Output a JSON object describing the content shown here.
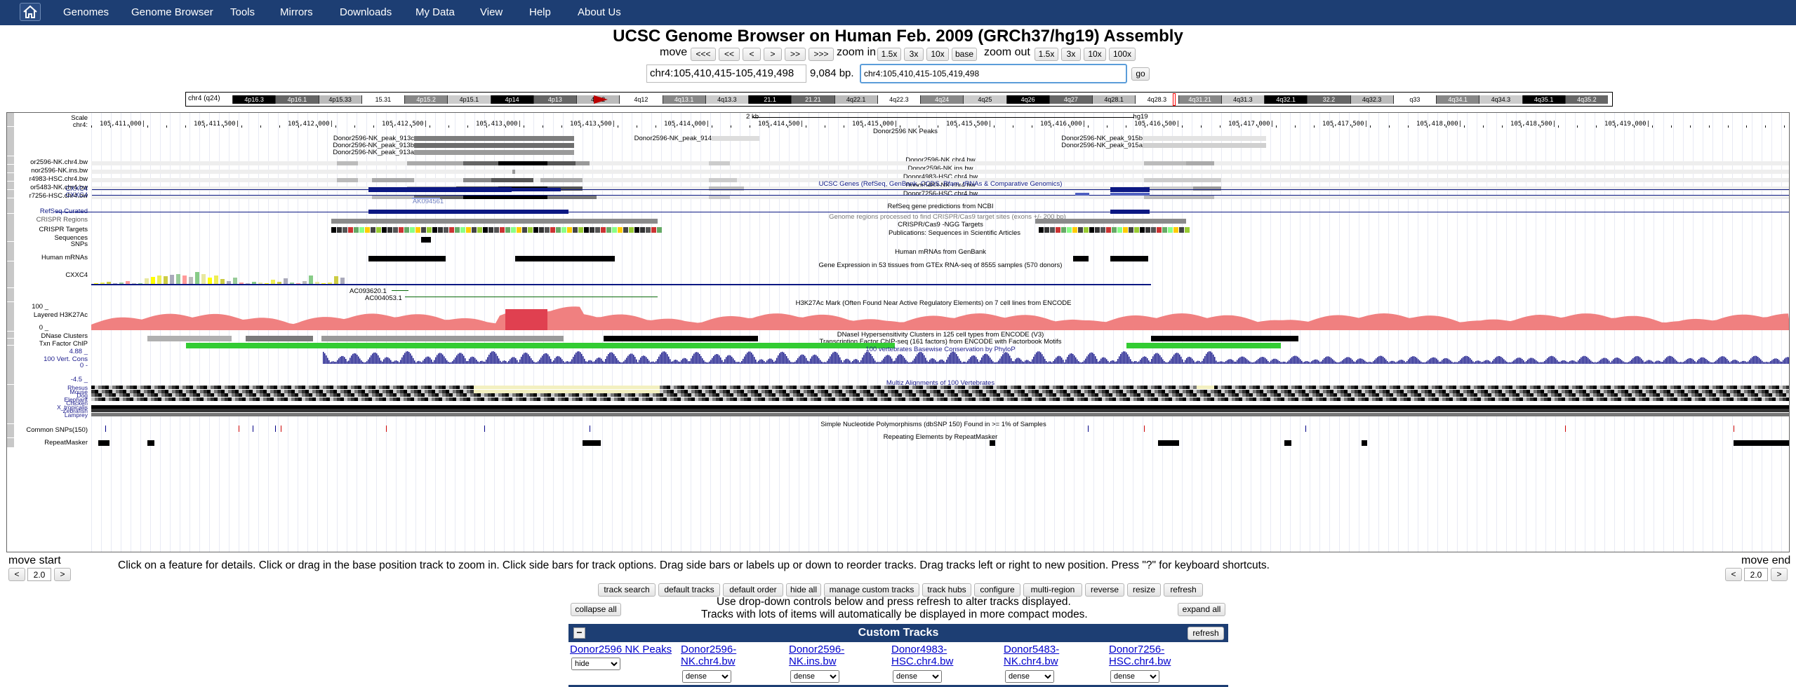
{
  "nav": {
    "items": [
      "Genomes",
      "Genome Browser",
      "Tools",
      "Mirrors",
      "Downloads",
      "My Data",
      "View",
      "Help",
      "About Us"
    ]
  },
  "title": "UCSC Genome Browser on Human Feb. 2009 (GRCh37/hg19) Assembly",
  "controls": {
    "move_label": "move",
    "move_buttons": [
      "<<<",
      "<<",
      "<",
      ">",
      ">>",
      ">>>"
    ],
    "zoom_in_label": "zoom in",
    "zoom_in_buttons": [
      "1.5x",
      "3x",
      "10x",
      "base"
    ],
    "zoom_out_label": "zoom out",
    "zoom_out_buttons": [
      "1.5x",
      "3x",
      "10x",
      "100x"
    ],
    "position": "chr4:105,410,415-105,419,498",
    "size": "9,084 bp.",
    "search_value": "chr4:105,410,415-105,419,498",
    "go": "go"
  },
  "ideogram": {
    "chrom": "chr4 (q24)",
    "bands": [
      "4p16.3",
      "4p16.1",
      "4p15.33",
      "15.31",
      "4p15.2",
      "4p15.1",
      "4p14",
      "4p13",
      "4p12",
      "4q12",
      "4q13.1",
      "4q13.3",
      "21.1",
      "21.21",
      "4q22.1",
      "4q22.3",
      "4q24",
      "4q25",
      "4q26",
      "4q27",
      "4q28.1",
      "4q28.3",
      "4q31.21",
      "4q31.3",
      "4q32.1",
      "32.2",
      "4q32.3",
      "q33",
      "4q34.1",
      "4q34.3",
      "4q35.1",
      "4q35.2"
    ]
  },
  "ruler": {
    "scale_label": "Scale",
    "chrom_label": "chr4:",
    "scale_text": "2 kb",
    "assembly": "hg19",
    "ticks": [
      "105,411,000|",
      "105,411,500|",
      "105,412,000|",
      "105,412,500|",
      "105,413,000|",
      "105,413,500|",
      "105,414,000|",
      "105,414,500|",
      "105,415,000|",
      "105,415,500|",
      "105,416,000|",
      "105,416,500|",
      "105,417,000|",
      "105,417,500|",
      "105,418,000|",
      "105,418,500|",
      "105,419,000|"
    ]
  },
  "peaks": {
    "title": "Donor2596 NK Peaks",
    "items": [
      "Donor2596-NK_peak_913c",
      "Donor2596-NK_peak_913b",
      "Donor2596-NK_peak_913a",
      "Donor2596-NK_peak_914",
      "Donor2596-NK_peak_915b",
      "Donor2596-NK_peak_915a"
    ]
  },
  "bw_tracks": [
    {
      "label": "or2596-NK.chr4.bw",
      "title": "Donor2596-NK.chr4.bw"
    },
    {
      "label": "nor2596-NK.ins.bw",
      "title": "Donor2596-NK.ins.bw"
    },
    {
      "label": "r4983-HSC.chr4.bw",
      "title": "Donor4983-HSC.chr4.bw"
    },
    {
      "label": "or5483-NK.chr4.bw",
      "title": "Donor5483-NK.chr4.bw"
    },
    {
      "label": "r7256-HSC.chr4.bw",
      "title": "Donor7256-HSC.chr4.bw"
    }
  ],
  "genes": {
    "title": "UCSC Genes (RefSeq, GenBank, CCDS, Rfam, tRNAs & Comparative Genomics)",
    "labels": [
      "CXXC4",
      "CXXC4",
      "AK094561"
    ],
    "refseq_title": "RefSeq gene predictions from NCBI",
    "refseq_label": "RefSeq Curated"
  },
  "crispr": {
    "regions_label": "CRISPR Regions",
    "targets_label": "CRISPR Targets",
    "regions_title": "Genome regions processed to find CRISPR/Cas9 target sites (exons +/- 200 bp)",
    "targets_title": "CRISPR/Cas9 -NGG Targets"
  },
  "publications": {
    "label1": "Sequences",
    "label2": "SNPs",
    "title": "Publications: Sequences in Scientific Articles"
  },
  "mrna": {
    "label": "Human mRNAs",
    "title": "Human mRNAs from GenBank"
  },
  "gtex": {
    "label": "CXXC4",
    "title": "Gene Expression in 53 tissues from GTEx RNA-seq of 8555 samples (570 donors)"
  },
  "clones": [
    "AC093620.1",
    "AC004053.1"
  ],
  "h3k27ac": {
    "label": "Layered H3K27Ac",
    "ymax": "100 _",
    "ymin": "0 _",
    "title": "H3K27Ac Mark (Often Found Near Active Regulatory Elements) on 7 cell lines from ENCODE"
  },
  "dnase": {
    "label": "DNase Clusters",
    "title": "DNaseI Hypersensitivity Clusters in 125 cell types from ENCODE (V3)"
  },
  "tfbs": {
    "label": "Txn Factor ChIP",
    "title": "Transcription Factor ChIP-seq (161 factors) from ENCODE with Factorbook Motifs"
  },
  "cons": {
    "label": "100 Vert. Cons",
    "ymax": "4.88 _",
    "zero": "0 -",
    "ymin": "-4.5 _",
    "title": "100 vertebrates Basewise Conservation by PhyloP"
  },
  "multiz": {
    "title": "Multiz Alignments of 100 Vertebrates",
    "species": [
      "Rhesus",
      "Mouse",
      "Dog",
      "Elephant",
      "Chicken",
      "X_tropicalis",
      "Zebrafish",
      "Lamprey"
    ]
  },
  "snps": {
    "label": "Common SNPs(150)",
    "title": "Simple Nucleotide Polymorphisms (dbSNP 150) Found in >= 1% of Samples"
  },
  "rmsk": {
    "label": "RepeatMasker",
    "title": "Repeating Elements by RepeatMasker"
  },
  "below": {
    "move_start": "move start",
    "move_end": "move end",
    "left_val": "2.0",
    "right_val": "2.0",
    "help_text": "Click on a feature for details. Click or drag in the base position track to zoom in. Click side bars for track options. Drag side bars or labels up or down to reorder tracks. Drag tracks left or right to new position. Press \"?\" for keyboard shortcuts.",
    "buttons": [
      "track search",
      "default tracks",
      "default order",
      "hide all",
      "manage custom tracks",
      "track hubs",
      "configure",
      "multi-region",
      "reverse",
      "resize",
      "refresh"
    ],
    "collapse_all": "collapse all",
    "expand_all": "expand all",
    "info1": "Use drop-down controls below and press refresh to alter tracks displayed.",
    "info2": "Tracks with lots of items will automatically be displayed in more compact modes."
  },
  "custom": {
    "header": "Custom Tracks",
    "collapse": "−",
    "refresh": "refresh",
    "tracks": [
      {
        "name": "Donor2596 NK Peaks",
        "mode": "hide"
      },
      {
        "name": "Donor2596-NK.chr4.bw",
        "mode": "dense"
      },
      {
        "name": "Donor2596-NK.ins.bw",
        "mode": "dense"
      },
      {
        "name": "Donor4983-HSC.chr4.bw",
        "mode": "dense"
      },
      {
        "name": "Donor5483-NK.chr4.bw",
        "mode": "dense"
      },
      {
        "name": "Donor7256-HSC.chr4.bw",
        "mode": "dense"
      }
    ]
  },
  "colors": {
    "nav": "#1d3e73",
    "gene": "#0c1883",
    "h3k27ac": "#f08080",
    "cons": "#1c1c8c",
    "custom_header": "#1d3e73"
  }
}
